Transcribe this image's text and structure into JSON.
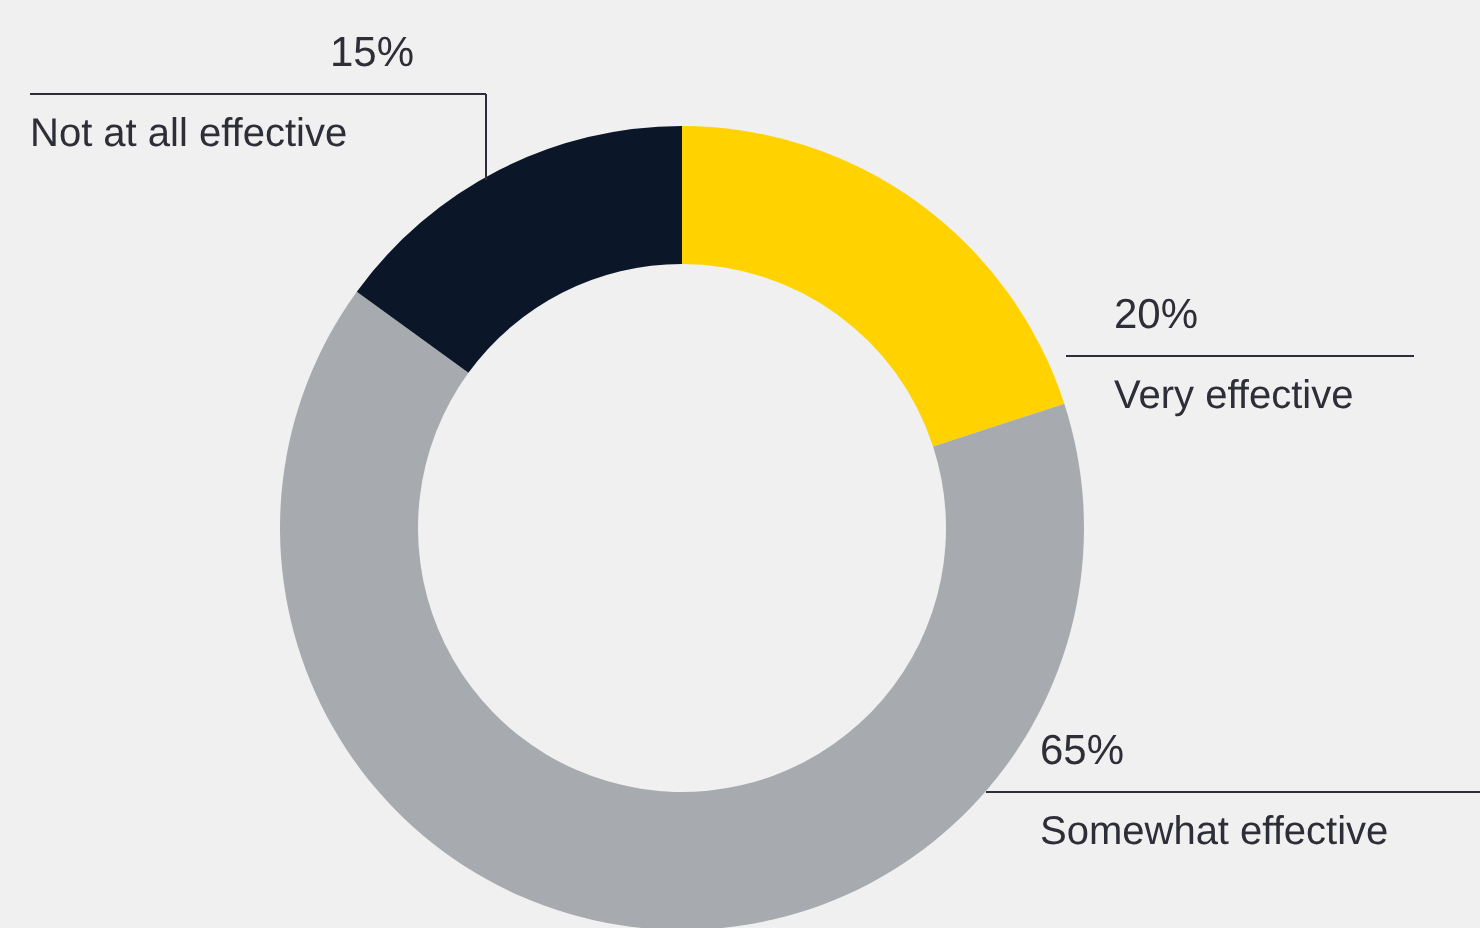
{
  "chart_data": {
    "type": "donut",
    "categories": [
      "Very effective",
      "Somewhat effective",
      "Not at all effective"
    ],
    "values": [
      20,
      65,
      15
    ],
    "value_labels": [
      "20%",
      "65%",
      "15%"
    ],
    "colors": [
      "#ffd200",
      "#a7abb0",
      "#0b1629"
    ]
  }
}
